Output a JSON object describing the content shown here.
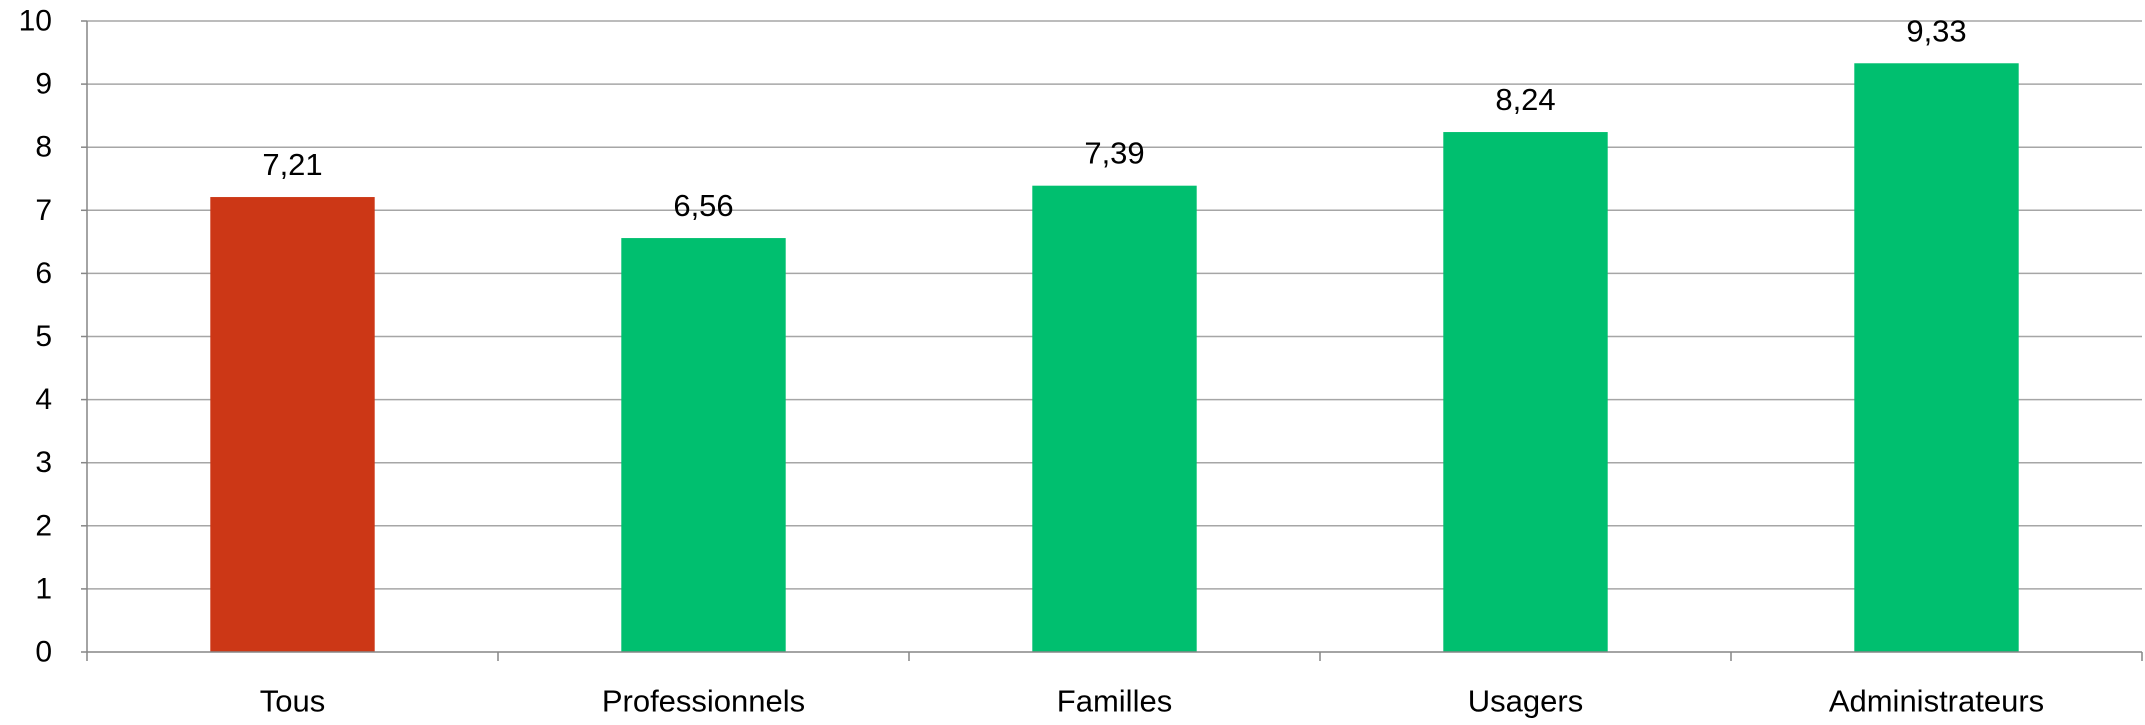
{
  "chart_data": {
    "type": "bar",
    "title": "",
    "xlabel": "",
    "ylabel": "",
    "categories": [
      "Tous",
      "Professionnels",
      "Familles",
      "Usagers",
      "Administrateurs"
    ],
    "values": [
      7.21,
      6.56,
      7.39,
      8.24,
      9.33
    ],
    "data_labels": [
      "7,21",
      "6,56",
      "7,39",
      "8,24",
      "9,33"
    ],
    "bar_colors": [
      "#cc3716",
      "#00bf6f",
      "#00bf6f",
      "#00bf6f",
      "#00bf6f"
    ],
    "ylim": [
      0,
      10
    ],
    "yticks": [
      0,
      1,
      2,
      3,
      4,
      5,
      6,
      7,
      8,
      9,
      10
    ],
    "grid": true,
    "legend": "none",
    "colors": {
      "highlight": "#cc3716",
      "default": "#00bf6f",
      "gridline": "#a6a6a6",
      "axis": "#868686"
    }
  }
}
